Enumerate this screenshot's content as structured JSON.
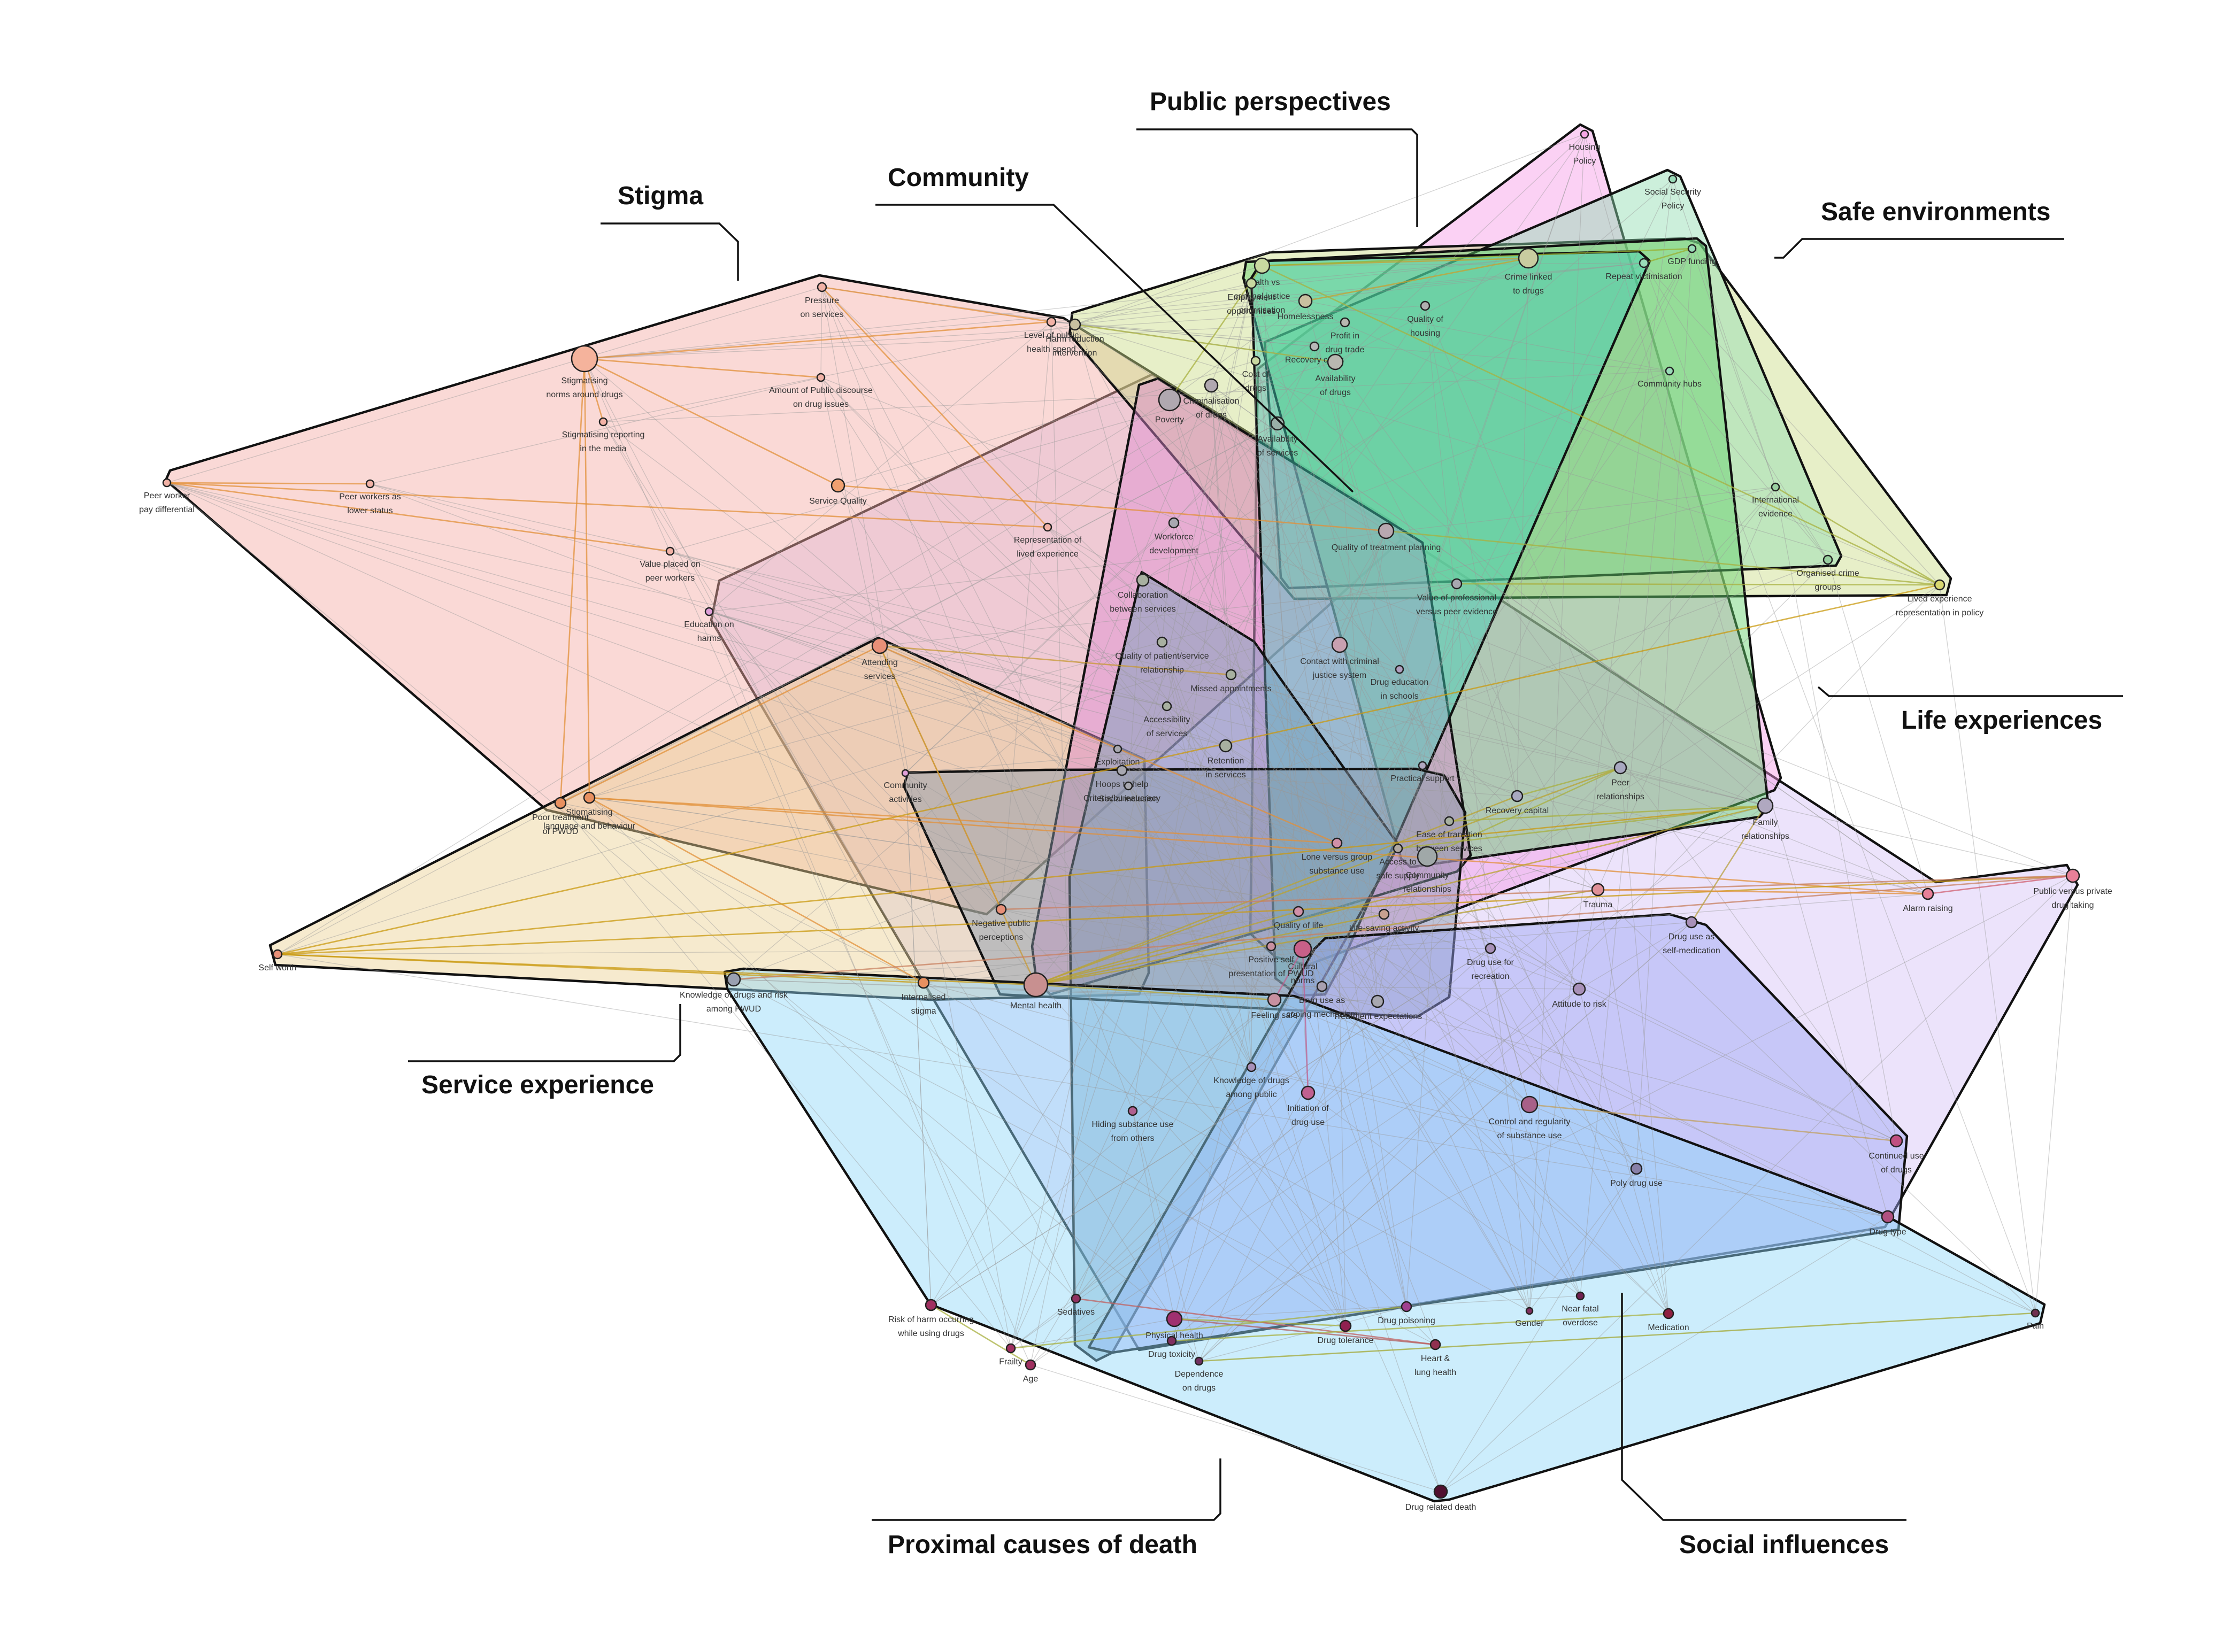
{
  "diagram": {
    "groups": [
      {
        "id": "stigma",
        "title": "Stigma",
        "color": "#f4aaa4"
      },
      {
        "id": "community",
        "title": "Community",
        "color": "#dd8ad0"
      },
      {
        "id": "public",
        "title": "Public perspectives",
        "color": "#f79ae6"
      },
      {
        "id": "safe",
        "title": "Safe environments",
        "color": "#8fdcb0"
      },
      {
        "id": "life",
        "title": "Life experiences",
        "color": "#d4c2f6"
      },
      {
        "id": "service",
        "title": "Service experience",
        "color": "#ebd093"
      },
      {
        "id": "proximal",
        "title": "Proximal causes of death",
        "color": "#8dd6f8"
      },
      {
        "id": "social",
        "title": "Social influences",
        "color": "#9ca4f4"
      },
      {
        "id": "yellow",
        "title": "",
        "color": "#c9dc86"
      },
      {
        "id": "teal",
        "title": "",
        "color": "#3fcfb8"
      },
      {
        "id": "slate",
        "title": "",
        "color": "#6f9fbd"
      },
      {
        "id": "dark",
        "title": "",
        "color": "#8899aa"
      },
      {
        "id": "green",
        "title": "",
        "color": "#62d06a"
      }
    ],
    "nodes": [
      {
        "id": "n1",
        "label": "Pressure\non services",
        "color": "#f2b2a6",
        "r": 8
      },
      {
        "id": "n2",
        "label": "Level of public\nhealth spend",
        "color": "#f2b2a6",
        "r": 8
      },
      {
        "id": "n3",
        "label": "Stigmatising\nnorms around drugs",
        "color": "#f5b39c",
        "r": 24
      },
      {
        "id": "n4",
        "label": "Amount of Public discourse\non drug issues",
        "color": "#f2b2a6",
        "r": 7
      },
      {
        "id": "n5",
        "label": "Stigmatising reporting\nin the media",
        "color": "#f2b2a6",
        "r": 7
      },
      {
        "id": "n6",
        "label": "Peer worker\npay differential",
        "color": "#f2b2a6",
        "r": 7
      },
      {
        "id": "n7",
        "label": "Peer workers as\nlower status",
        "color": "#f2b2a6",
        "r": 7
      },
      {
        "id": "n8",
        "label": "Service Quality",
        "color": "#f0a070",
        "r": 12
      },
      {
        "id": "n9",
        "label": "Value placed on\npeer workers",
        "color": "#f2b2a6",
        "r": 7
      },
      {
        "id": "n10",
        "label": "Representation of\nlived experience",
        "color": "#f2b2a6",
        "r": 7
      },
      {
        "id": "n11",
        "label": "Education on\nharms",
        "color": "#e0a0d8",
        "r": 7
      },
      {
        "id": "n12",
        "label": "Attending\nservices",
        "color": "#e89078",
        "r": 14
      },
      {
        "id": "n13",
        "label": "Poor treatment\nof PWUD",
        "color": "#e89060",
        "r": 10
      },
      {
        "id": "n14",
        "label": "Stigmatising\nlanguage and behaviour",
        "color": "#e89060",
        "r": 10
      },
      {
        "id": "n15",
        "label": "Community\nactivities",
        "color": "#e0a0d8",
        "r": 6
      },
      {
        "id": "n16",
        "label": "Negative public\nperceptions",
        "color": "#e89078",
        "r": 9
      },
      {
        "id": "n17",
        "label": "Self worth",
        "color": "#e89078",
        "r": 8
      },
      {
        "id": "n18",
        "label": "Knowledge of drugs and risk\namong PWUD",
        "color": "#9aa0b0",
        "r": 12
      },
      {
        "id": "n19",
        "label": "Internalised\nstigma",
        "color": "#e89060",
        "r": 10
      },
      {
        "id": "n20",
        "label": "Mental health",
        "color": "#c89090",
        "r": 22
      },
      {
        "id": "n21",
        "label": "Housing\nPolicy",
        "color": "#f6a6e6",
        "r": 7
      },
      {
        "id": "n22",
        "label": "Social Security\nPolicy",
        "color": "#9adcb8",
        "r": 7
      },
      {
        "id": "n23",
        "label": "GDP funding",
        "color": "#9adcb8",
        "r": 7
      },
      {
        "id": "n24",
        "label": "Crime linked\nto drugs",
        "color": "#c8cca0",
        "r": 18
      },
      {
        "id": "n25",
        "label": "Health vs\ncriminal justice\nprioritisation",
        "color": "#c8d8a0",
        "r": 14
      },
      {
        "id": "n26",
        "label": "Employment\nopportunities",
        "color": "#c8d8a0",
        "r": 9
      },
      {
        "id": "n27",
        "label": "Homelessness",
        "color": "#c8c0a0",
        "r": 12
      },
      {
        "id": "n28",
        "label": "Profit in\ndrug trade",
        "color": "#b8b8b0",
        "r": 8
      },
      {
        "id": "n29",
        "label": "Quality of\nhousing",
        "color": "#b0b0b0",
        "r": 8
      },
      {
        "id": "n30",
        "label": "Harm reduction\nintervention",
        "color": "#c8c0a0",
        "r": 10
      },
      {
        "id": "n31",
        "label": "Cost of\ndrugs",
        "color": "#c8d8a0",
        "r": 8
      },
      {
        "id": "n32",
        "label": "Recovery cafes",
        "color": "#b8b8b8",
        "r": 8
      },
      {
        "id": "n33",
        "label": "Availability\nof drugs",
        "color": "#b8b8b0",
        "r": 14
      },
      {
        "id": "n34",
        "label": "Poverty",
        "color": "#b0a8b0",
        "r": 20
      },
      {
        "id": "n35",
        "label": "Criminalisation\nof drugs",
        "color": "#b0a8b0",
        "r": 12
      },
      {
        "id": "n36",
        "label": "Availability\nof services",
        "color": "#9ab0a8",
        "r": 12
      },
      {
        "id": "n37",
        "label": "Repeat victimisation",
        "color": "#9adcb8",
        "r": 8
      },
      {
        "id": "n38",
        "label": "Community hubs",
        "color": "#9adcb8",
        "r": 7
      },
      {
        "id": "n39",
        "label": "International\nevidence",
        "color": "#9ad0a0",
        "r": 7
      },
      {
        "id": "n40",
        "label": "Organised crime\ngroups",
        "color": "#9ad0a0",
        "r": 8
      },
      {
        "id": "n41",
        "label": "Lived experience\nrepresentation in policy",
        "color": "#d8d870",
        "r": 9
      },
      {
        "id": "n42",
        "label": "Workforce\ndevelopment",
        "color": "#a8a8b0",
        "r": 9
      },
      {
        "id": "n43",
        "label": "Quality of treatment planning",
        "color": "#b8a8b0",
        "r": 14
      },
      {
        "id": "n44",
        "label": "Collaboration\nbetween services",
        "color": "#a8b0a0",
        "r": 11
      },
      {
        "id": "n45",
        "label": "Value of professional\nversus peer evidence",
        "color": "#a8a8b0",
        "r": 9
      },
      {
        "id": "n46",
        "label": "Quality of patient/service\nrelationship",
        "color": "#a8b0a0",
        "r": 9
      },
      {
        "id": "n47",
        "label": "Contact with criminal\njustice system",
        "color": "#c8a0b0",
        "r": 14
      },
      {
        "id": "n48",
        "label": "Missed appointments",
        "color": "#a8b0a0",
        "r": 9
      },
      {
        "id": "n49",
        "label": "Drug education\nin schools",
        "color": "#b0a0c0",
        "r": 7
      },
      {
        "id": "n50",
        "label": "Accessibility\nof services",
        "color": "#a8b0a0",
        "r": 8
      },
      {
        "id": "n51",
        "label": "Retention\nin services",
        "color": "#a8b0a0",
        "r": 11
      },
      {
        "id": "n52",
        "label": "Exploitation",
        "color": "#a8a8b0",
        "r": 7
      },
      {
        "id": "n53",
        "label": "Hoops to help\nCriteria/bureaucracy",
        "color": "#a8a8b0",
        "r": 9
      },
      {
        "id": "n54",
        "label": "Social inclusion",
        "color": "#a8a8b0",
        "r": 7
      },
      {
        "id": "n55",
        "label": "Practical support",
        "color": "#b0a8c0",
        "r": 7
      },
      {
        "id": "n56",
        "label": "Peer\nrelationships",
        "color": "#a8a8c0",
        "r": 11
      },
      {
        "id": "n57",
        "label": "Recovery capital",
        "color": "#a8a8c0",
        "r": 10
      },
      {
        "id": "n58",
        "label": "Ease of transition\nbetween services",
        "color": "#a8b0a0",
        "r": 8
      },
      {
        "id": "n59",
        "label": "Family\nrelationships",
        "color": "#b0a8c0",
        "r": 14
      },
      {
        "id": "n60",
        "label": "Lone versus group\nsubstance use",
        "color": "#d090a8",
        "r": 9
      },
      {
        "id": "n61",
        "label": "Access to\nsafe supply",
        "color": "#b0a8a0",
        "r": 8
      },
      {
        "id": "n62",
        "label": "Community\nrelationships",
        "color": "#a0a8a8",
        "r": 18
      },
      {
        "id": "n63",
        "label": "Trauma",
        "color": "#e09098",
        "r": 11
      },
      {
        "id": "n64",
        "label": "Alarm raising",
        "color": "#e88098",
        "r": 10
      },
      {
        "id": "n65",
        "label": "Public versus private\ndrug taking",
        "color": "#e88098",
        "r": 12
      },
      {
        "id": "n66",
        "label": "Quality of life",
        "color": "#d090a8",
        "r": 9
      },
      {
        "id": "n67",
        "label": "Life-saving activity",
        "color": "#c8a090",
        "r": 9
      },
      {
        "id": "n68",
        "label": "Positive self\npresentation of PWUD",
        "color": "#c890a0",
        "r": 8
      },
      {
        "id": "n69",
        "label": "Cultural\nnorms",
        "color": "#c86088",
        "r": 16
      },
      {
        "id": "n70",
        "label": "Drug use as\ncoping mechanism",
        "color": "#a8a0b0",
        "r": 9
      },
      {
        "id": "n71",
        "label": "Feeling safe",
        "color": "#c890a0",
        "r": 12
      },
      {
        "id": "n72",
        "label": "Treatment expectations",
        "color": "#a8a8b0",
        "r": 11
      },
      {
        "id": "n73",
        "label": "Drug use for\nrecreation",
        "color": "#a890b8",
        "r": 9
      },
      {
        "id": "n74",
        "label": "Drug use as\nself-medication",
        "color": "#a890b8",
        "r": 10
      },
      {
        "id": "n75",
        "label": "Attitude to risk",
        "color": "#a890b8",
        "r": 11
      },
      {
        "id": "n76",
        "label": "Knowledge of drugs\namong public",
        "color": "#a890b8",
        "r": 8
      },
      {
        "id": "n77",
        "label": "Initiation of\ndrug use",
        "color": "#c06090",
        "r": 12
      },
      {
        "id": "n78",
        "label": "Hiding substance use\nfrom others",
        "color": "#b06090",
        "r": 8
      },
      {
        "id": "n79",
        "label": "Control and regularity\nof substance use",
        "color": "#a86088",
        "r": 15
      },
      {
        "id": "n80",
        "label": "Continued use\nof drugs",
        "color": "#c05080",
        "r": 11
      },
      {
        "id": "n81",
        "label": "Poly drug use",
        "color": "#8880a8",
        "r": 10
      },
      {
        "id": "n82",
        "label": "Drug type",
        "color": "#b05080",
        "r": 11
      },
      {
        "id": "n83",
        "label": "Risk of harm occurring\nwhile using drugs",
        "color": "#a03060",
        "r": 10
      },
      {
        "id": "n84",
        "label": "Sedatives",
        "color": "#903060",
        "r": 8
      },
      {
        "id": "n85",
        "label": "Frailty",
        "color": "#a03060",
        "r": 8
      },
      {
        "id": "n86",
        "label": "Age",
        "color": "#a03060",
        "r": 9
      },
      {
        "id": "n87",
        "label": "Physical health",
        "color": "#a03070",
        "r": 14
      },
      {
        "id": "n88",
        "label": "Drug toxicity",
        "color": "#803060",
        "r": 8
      },
      {
        "id": "n89",
        "label": "Dependence\non drugs",
        "color": "#703060",
        "r": 7
      },
      {
        "id": "n90",
        "label": "Drug tolerance",
        "color": "#902050",
        "r": 10
      },
      {
        "id": "n91",
        "label": "Drug poisoning",
        "color": "#a04090",
        "r": 9
      },
      {
        "id": "n92",
        "label": "Heart &\nlung health",
        "color": "#903050",
        "r": 9
      },
      {
        "id": "n93",
        "label": "Gender",
        "color": "#803060",
        "r": 6
      },
      {
        "id": "n94",
        "label": "Near fatal\noverdose",
        "color": "#702050",
        "r": 7
      },
      {
        "id": "n95",
        "label": "Medication",
        "color": "#902040",
        "r": 9
      },
      {
        "id": "n96",
        "label": "Pain",
        "color": "#703050",
        "r": 7
      },
      {
        "id": "n97",
        "label": "Drug related death",
        "color": "#501030",
        "r": 12
      }
    ]
  }
}
